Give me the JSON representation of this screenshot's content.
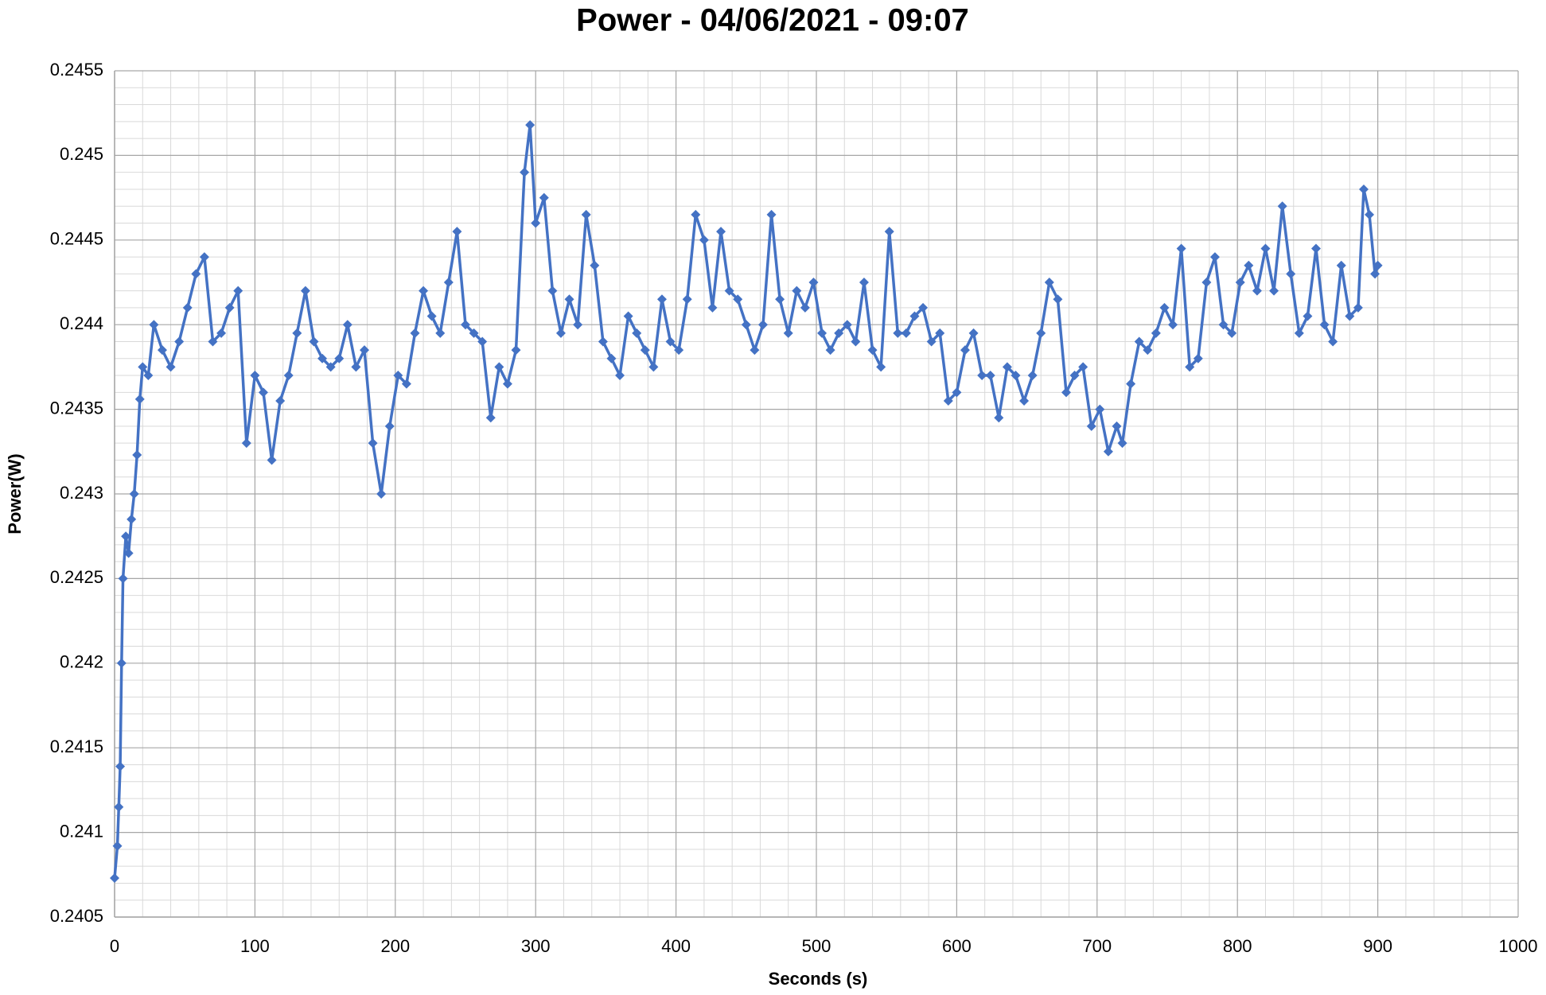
{
  "chart_data": {
    "type": "line",
    "title": "Power - 04/06/2021 - 09:07",
    "x_label": "Seconds (s)",
    "y_label": "Power(W)",
    "xlim": [
      0,
      1000
    ],
    "xticks": [
      0,
      100,
      200,
      300,
      400,
      500,
      600,
      700,
      800,
      900,
      1000
    ],
    "ylim": [
      0.2405,
      0.2455
    ],
    "yticks": [
      0.2405,
      0.241,
      0.2415,
      0.242,
      0.2425,
      0.243,
      0.2435,
      0.244,
      0.2445,
      0.245,
      0.2455
    ],
    "grid": true,
    "minor_grid": true,
    "marker": "diamond",
    "x": [
      0,
      2,
      3,
      4,
      5,
      6,
      8,
      10,
      12,
      14,
      16,
      18,
      20,
      24,
      28,
      34,
      40,
      46,
      52,
      58,
      64,
      70,
      76,
      82,
      88,
      94,
      100,
      106,
      112,
      118,
      124,
      130,
      136,
      142,
      148,
      154,
      160,
      166,
      172,
      178,
      184,
      190,
      196,
      202,
      208,
      214,
      220,
      226,
      232,
      238,
      244,
      250,
      256,
      262,
      268,
      274,
      280,
      286,
      292,
      296,
      300,
      306,
      312,
      318,
      324,
      330,
      336,
      342,
      348,
      354,
      360,
      366,
      372,
      378,
      384,
      390,
      396,
      402,
      408,
      414,
      420,
      426,
      432,
      438,
      444,
      450,
      456,
      462,
      468,
      474,
      480,
      486,
      492,
      498,
      504,
      510,
      516,
      522,
      528,
      534,
      540,
      546,
      552,
      558,
      564,
      570,
      576,
      582,
      588,
      594,
      600,
      606,
      612,
      618,
      624,
      630,
      636,
      642,
      648,
      654,
      660,
      666,
      672,
      678,
      684,
      690,
      696,
      702,
      708,
      714,
      718,
      724,
      730,
      736,
      742,
      748,
      754,
      760,
      766,
      772,
      778,
      784,
      790,
      796,
      802,
      808,
      814,
      820,
      826,
      832,
      838,
      844,
      850,
      856,
      862,
      868,
      874,
      880,
      886,
      890,
      894,
      898,
      900
    ],
    "series": [
      {
        "color": "#4472c4",
        "values": [
          0.24073,
          0.24092,
          0.24115,
          0.24139,
          0.242,
          0.2425,
          0.24275,
          0.24265,
          0.24285,
          0.243,
          0.24323,
          0.24356,
          0.24375,
          0.2437,
          0.244,
          0.24385,
          0.24375,
          0.2439,
          0.2441,
          0.2443,
          0.2444,
          0.2439,
          0.24395,
          0.2441,
          0.2442,
          0.2433,
          0.2437,
          0.2436,
          0.2432,
          0.24355,
          0.2437,
          0.24395,
          0.2442,
          0.2439,
          0.2438,
          0.24375,
          0.2438,
          0.244,
          0.24375,
          0.24385,
          0.2433,
          0.243,
          0.2434,
          0.2437,
          0.24365,
          0.24395,
          0.2442,
          0.24405,
          0.24395,
          0.24425,
          0.24455,
          0.244,
          0.24395,
          0.2439,
          0.24345,
          0.24375,
          0.24365,
          0.24385,
          0.2449,
          0.24518,
          0.2446,
          0.24475,
          0.2442,
          0.24395,
          0.24415,
          0.244,
          0.24465,
          0.24435,
          0.2439,
          0.2438,
          0.2437,
          0.24405,
          0.24395,
          0.24385,
          0.24375,
          0.24415,
          0.2439,
          0.24385,
          0.24415,
          0.24465,
          0.2445,
          0.2441,
          0.24455,
          0.2442,
          0.24415,
          0.244,
          0.24385,
          0.244,
          0.24465,
          0.24415,
          0.24395,
          0.2442,
          0.2441,
          0.24425,
          0.24395,
          0.24385,
          0.24395,
          0.244,
          0.2439,
          0.24425,
          0.24385,
          0.24375,
          0.24455,
          0.24395,
          0.24395,
          0.24405,
          0.2441,
          0.2439,
          0.24395,
          0.24355,
          0.2436,
          0.24385,
          0.24395,
          0.2437,
          0.2437,
          0.24345,
          0.24375,
          0.2437,
          0.24355,
          0.2437,
          0.24395,
          0.24425,
          0.24415,
          0.2436,
          0.2437,
          0.24375,
          0.2434,
          0.2435,
          0.24325,
          0.2434,
          0.2433,
          0.24365,
          0.2439,
          0.24385,
          0.24395,
          0.2441,
          0.244,
          0.24445,
          0.24375,
          0.2438,
          0.24425,
          0.2444,
          0.244,
          0.24395,
          0.24425,
          0.24435,
          0.2442,
          0.24445,
          0.2442,
          0.2447,
          0.2443,
          0.24395,
          0.24405,
          0.24445,
          0.244,
          0.2439,
          0.24435,
          0.24405,
          0.2441,
          0.2448,
          0.24465,
          0.2443,
          0.24435
        ]
      }
    ]
  }
}
